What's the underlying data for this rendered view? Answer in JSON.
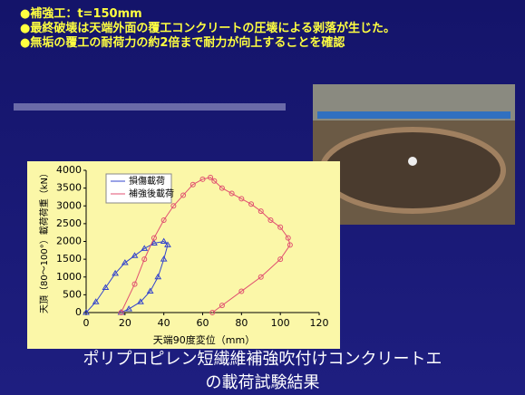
{
  "bullets": [
    "●補強工：t=150mm",
    "●最終破壊は天端外面の覆工コンクリートの圧壊による剥落が生じた。",
    "●無垢の覆工の耐荷力の約2倍まで耐力が向上することを確認"
  ],
  "caption": [
    "ポリプロピレン短繊維補強吹付けコンクリートエ",
    "の載荷試験結果"
  ],
  "chart_data": {
    "type": "line",
    "x_label": "天端90度変位（mm）",
    "y_label": "天頂（80～100°）載荷荷重（kN）",
    "xlim": [
      0,
      120
    ],
    "xticks": [
      0,
      20,
      40,
      60,
      80,
      100,
      120
    ],
    "ylim": [
      0,
      4000
    ],
    "yticks": [
      0,
      500,
      1000,
      1500,
      2000,
      2500,
      3000,
      3500,
      4000
    ],
    "grid": false,
    "series": [
      {
        "name": "損傷載荷",
        "color": "#3344cc",
        "marker": "triangle",
        "x": [
          0,
          5,
          10,
          15,
          20,
          25,
          30,
          35,
          40,
          42,
          40,
          37,
          33,
          28,
          22,
          18
        ],
        "values": [
          0,
          300,
          700,
          1100,
          1400,
          1600,
          1800,
          1950,
          2000,
          1900,
          1500,
          1000,
          600,
          300,
          100,
          0
        ]
      },
      {
        "name": "補強後載荷",
        "color": "#e05070",
        "marker": "circle",
        "x": [
          18,
          25,
          30,
          35,
          40,
          45,
          50,
          55,
          60,
          64,
          66,
          70,
          75,
          80,
          85,
          90,
          95,
          100,
          104,
          105,
          100,
          90,
          80,
          70,
          65
        ],
        "values": [
          0,
          800,
          1500,
          2100,
          2600,
          3000,
          3300,
          3600,
          3750,
          3800,
          3700,
          3500,
          3350,
          3200,
          3050,
          2850,
          2600,
          2400,
          2100,
          1900,
          1500,
          1000,
          600,
          200,
          0
        ]
      }
    ]
  }
}
